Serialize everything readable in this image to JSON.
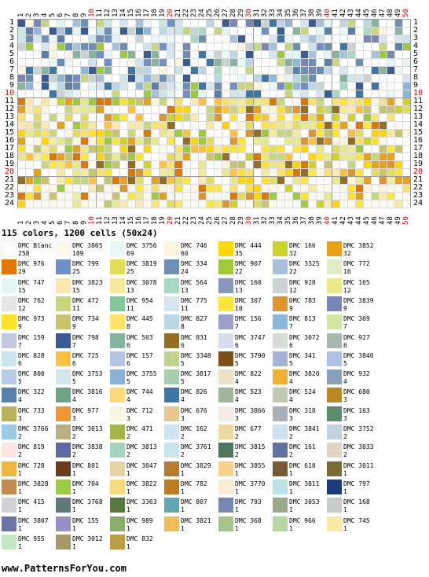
{
  "summary": "115 colors, 1200 cells (50x24)",
  "footer": "www.PatternsForYou.com",
  "grid": {
    "cols": 50,
    "rows": 24
  },
  "legend": [
    {
      "name": "DMC Blanc",
      "count": "258",
      "color": "#ffffff"
    },
    {
      "name": "DMC 3865",
      "count": "109",
      "color": "#fbf8ee"
    },
    {
      "name": "DMC 3756",
      "count": "69",
      "color": "#e8f8f8"
    },
    {
      "name": "DMC 746",
      "count": "60",
      "color": "#fdf6dc"
    },
    {
      "name": "DMC 444",
      "count": "35",
      "color": "#ffd600"
    },
    {
      "name": "DMC 166",
      "count": "32",
      "color": "#cdd428"
    },
    {
      "name": "DMC 3852",
      "count": "32",
      "color": "#e8a215"
    },
    {
      "name": "DMC 976",
      "count": "29",
      "color": "#e07800"
    },
    {
      "name": "DMC 799",
      "count": "25",
      "color": "#6f8fc8"
    },
    {
      "name": "DMC 3819",
      "count": "25",
      "color": "#e2de5a"
    },
    {
      "name": "DMC 334",
      "count": "24",
      "color": "#6b90b6"
    },
    {
      "name": "DMC 907",
      "count": "22",
      "color": "#9ecb3a"
    },
    {
      "name": "DMC 3325",
      "count": "22",
      "color": "#a4c2de"
    },
    {
      "name": "DMC 772",
      "count": "16",
      "color": "#e2ecc4"
    },
    {
      "name": "DMC 747",
      "count": "15",
      "color": "#e2f6f6"
    },
    {
      "name": "DMC 3823",
      "count": "15",
      "color": "#fde9b0"
    },
    {
      "name": "DMC 3078",
      "count": "13",
      "color": "#f6eb9c"
    },
    {
      "name": "DMC 564",
      "count": "13",
      "color": "#a6d9c2"
    },
    {
      "name": "DMC 160",
      "count": "13",
      "color": "#8a96b9"
    },
    {
      "name": "DMC 928",
      "count": "12",
      "color": "#c9d3d3"
    },
    {
      "name": "DMC 165",
      "count": "12",
      "color": "#e8ea8a"
    },
    {
      "name": "DMC 762",
      "count": "12",
      "color": "#e6e6e6"
    },
    {
      "name": "DMC 472",
      "count": "11",
      "color": "#c6d87a"
    },
    {
      "name": "DMC 954",
      "count": "11",
      "color": "#82c89b"
    },
    {
      "name": "DMC 775",
      "count": "11",
      "color": "#d5e6f0"
    },
    {
      "name": "DMC 307",
      "count": "10",
      "color": "#fde83a"
    },
    {
      "name": "DMC 783",
      "count": "9",
      "color": "#e0952a"
    },
    {
      "name": "DMC 3839",
      "count": "9",
      "color": "#7886b8"
    },
    {
      "name": "DMC 973",
      "count": "9",
      "color": "#ffe32a"
    },
    {
      "name": "DMC 734",
      "count": "9",
      "color": "#c8c46c"
    },
    {
      "name": "DMC 445",
      "count": "8",
      "color": "#fbe36a"
    },
    {
      "name": "DMC 827",
      "count": "8",
      "color": "#b8d8e8"
    },
    {
      "name": "DMC 156",
      "count": "7",
      "color": "#9ba0c8"
    },
    {
      "name": "DMC 813",
      "count": "7",
      "color": "#8cb8dc"
    },
    {
      "name": "DMC 369",
      "count": "7",
      "color": "#d2e4a0"
    },
    {
      "name": "DMC 159",
      "count": "7",
      "color": "#c2c8e0"
    },
    {
      "name": "DMC 798",
      "count": "7",
      "color": "#3a5c94"
    },
    {
      "name": "DMC 503",
      "count": "6",
      "color": "#86b49e"
    },
    {
      "name": "DMC 831",
      "count": "6",
      "color": "#937021"
    },
    {
      "name": "DMC 3747",
      "count": "6",
      "color": "#d8dcec"
    },
    {
      "name": "DMC 3072",
      "count": "6",
      "color": "#d8dcd8"
    },
    {
      "name": "DMC 927",
      "count": "6",
      "color": "#a6b8b0"
    },
    {
      "name": "DMC 828",
      "count": "6",
      "color": "#cae6ec"
    },
    {
      "name": "DMC 725",
      "count": "6",
      "color": "#ffc23a"
    },
    {
      "name": "DMC 157",
      "count": "6",
      "color": "#b6c4e6"
    },
    {
      "name": "DMC 3348",
      "count": "5",
      "color": "#c2d48a"
    },
    {
      "name": "DMC 3790",
      "count": "5",
      "color": "#7c5014"
    },
    {
      "name": "DMC 341",
      "count": "5",
      "color": "#a6b2d6"
    },
    {
      "name": "DMC 3840",
      "count": "5",
      "color": "#aec2e6"
    },
    {
      "name": "DMC 800",
      "count": "5",
      "color": "#b8cce6"
    },
    {
      "name": "DMC 3753",
      "count": "5",
      "color": "#d6e6ee"
    },
    {
      "name": "DMC 3755",
      "count": "5",
      "color": "#8cb0d6"
    },
    {
      "name": "DMC 3817",
      "count": "5",
      "color": "#a6cfb0"
    },
    {
      "name": "DMC 822",
      "count": "4",
      "color": "#ece2c8"
    },
    {
      "name": "DMC 3820",
      "count": "4",
      "color": "#f0b030"
    },
    {
      "name": "DMC 932",
      "count": "4",
      "color": "#8aa0b8"
    },
    {
      "name": "DMC 322",
      "count": "4",
      "color": "#5a80ae"
    },
    {
      "name": "DMC 3816",
      "count": "4",
      "color": "#6ea48a"
    },
    {
      "name": "DMC 744",
      "count": "4",
      "color": "#fdda7a"
    },
    {
      "name": "DMC 826",
      "count": "4",
      "color": "#3c78a6"
    },
    {
      "name": "DMC 523",
      "count": "4",
      "color": "#a2b49a"
    },
    {
      "name": "DMC 524",
      "count": "4",
      "color": "#c2cab2"
    },
    {
      "name": "DMC 680",
      "count": "3",
      "color": "#b88a24"
    },
    {
      "name": "DMC 733",
      "count": "3",
      "color": "#b8b45a"
    },
    {
      "name": "DMC 977",
      "count": "3",
      "color": "#f29630"
    },
    {
      "name": "DMC 712",
      "count": "3",
      "color": "#fbf6e2"
    },
    {
      "name": "DMC 676",
      "count": "3",
      "color": "#e8c88a"
    },
    {
      "name": "DMC 3866",
      "count": "3",
      "color": "#f2ece2"
    },
    {
      "name": "DMC 318",
      "count": "3",
      "color": "#aab0b8"
    },
    {
      "name": "DMC 163",
      "count": "3",
      "color": "#5c8c6c"
    },
    {
      "name": "DMC 3766",
      "count": "2",
      "color": "#9ccae0"
    },
    {
      "name": "DMC 3013",
      "count": "2",
      "color": "#b8b080"
    },
    {
      "name": "DMC 471",
      "count": "2",
      "color": "#a4b448"
    },
    {
      "name": "DMC 162",
      "count": "2",
      "color": "#d0e4f0"
    },
    {
      "name": "DMC 677",
      "count": "2",
      "color": "#eedaa0"
    },
    {
      "name": "DMC 3841",
      "count": "2",
      "color": "#cde2ee"
    },
    {
      "name": "DMC 3752",
      "count": "2",
      "color": "#c2d2de"
    },
    {
      "name": "DMC 819",
      "count": "2",
      "color": "#fbe6e2"
    },
    {
      "name": "DMC 3838",
      "count": "2",
      "color": "#5c6ca8"
    },
    {
      "name": "DMC 3813",
      "count": "2",
      "color": "#a6d2c0"
    },
    {
      "name": "DMC 3761",
      "count": "2",
      "color": "#c8e6f0"
    },
    {
      "name": "DMC 3815",
      "count": "2",
      "color": "#4c7860"
    },
    {
      "name": "DMC 161",
      "count": "2",
      "color": "#6070a0"
    },
    {
      "name": "DMC 3033",
      "count": "2",
      "color": "#e2d4c2"
    },
    {
      "name": "DMC 728",
      "count": "1",
      "color": "#f0b640"
    },
    {
      "name": "DMC 801",
      "count": "1",
      "color": "#6c3c1c"
    },
    {
      "name": "DMC 3047",
      "count": "1",
      "color": "#e6d4a6"
    },
    {
      "name": "DMC 3829",
      "count": "1",
      "color": "#b87a30"
    },
    {
      "name": "DMC 3855",
      "count": "1",
      "color": "#fad08c"
    },
    {
      "name": "DMC 610",
      "count": "1",
      "color": "#7a5a30"
    },
    {
      "name": "DMC 3011",
      "count": "1",
      "color": "#7a6c3a"
    },
    {
      "name": "DMC 3828",
      "count": "1",
      "color": "#c08c50"
    },
    {
      "name": "DMC 704",
      "count": "1",
      "color": "#9acd40"
    },
    {
      "name": "DMC 3822",
      "count": "1",
      "color": "#f6da7c"
    },
    {
      "name": "DMC 782",
      "count": "1",
      "color": "#c07a20"
    },
    {
      "name": "DMC 3770",
      "count": "1",
      "color": "#fcebd6"
    },
    {
      "name": "DMC 3811",
      "count": "1",
      "color": "#bce4e6"
    },
    {
      "name": "DMC 797",
      "count": "1",
      "color": "#1c3c78"
    },
    {
      "name": "DMC 415",
      "count": "1",
      "color": "#d2d2d6"
    },
    {
      "name": "DMC 3768",
      "count": "1",
      "color": "#607878"
    },
    {
      "name": "DMC 3363",
      "count": "1",
      "color": "#587840"
    },
    {
      "name": "DMC 807",
      "count": "1",
      "color": "#64a6b4"
    },
    {
      "name": "DMC 793",
      "count": "1",
      "color": "#7888b4"
    },
    {
      "name": "DMC 3053",
      "count": "1",
      "color": "#9ca88a"
    },
    {
      "name": "DMC 168",
      "count": "1",
      "color": "#c8cccc"
    },
    {
      "name": "DMC 3807",
      "count": "1",
      "color": "#6a74a8"
    },
    {
      "name": "DMC 155",
      "count": "1",
      "color": "#9890c8"
    },
    {
      "name": "DMC 989",
      "count": "1",
      "color": "#8cac6a"
    },
    {
      "name": "DMC 3821",
      "count": "1",
      "color": "#f2bd54"
    },
    {
      "name": "DMC 368",
      "count": "1",
      "color": "#a6c48a"
    },
    {
      "name": "DMC 966",
      "count": "1",
      "color": "#b4d8a0"
    },
    {
      "name": "DMC 745",
      "count": "1",
      "color": "#fde9a6"
    },
    {
      "name": "DMC 955",
      "count": "1",
      "color": "#c2e6c6"
    },
    {
      "name": "DMC 3012",
      "count": "1",
      "color": "#a49a6a"
    },
    {
      "name": "DMC 832",
      "count": "1",
      "color": "#bc9c44"
    }
  ]
}
